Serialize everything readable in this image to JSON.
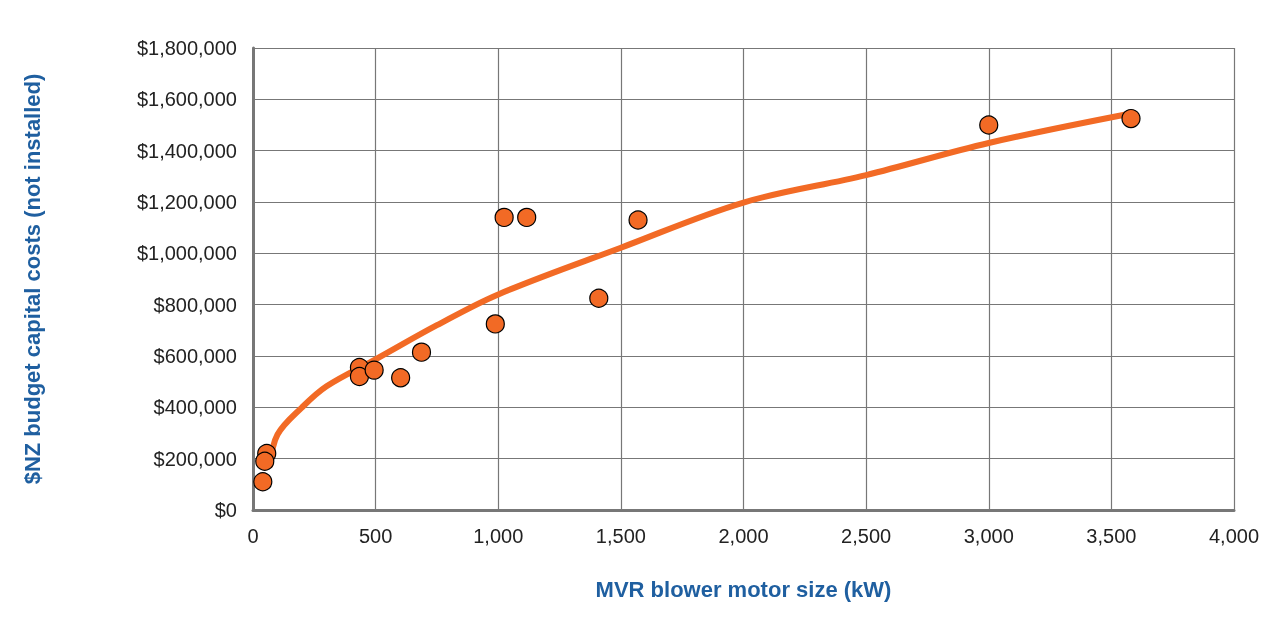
{
  "chart_data": {
    "type": "scatter",
    "xlabel": "MVR blower motor size (kW)",
    "ylabel": "$NZ budget capital costs (not installed)",
    "xlim": [
      0,
      4000
    ],
    "xticks": [
      0,
      500,
      {
        "value": 1000,
        "label": "1,000"
      },
      {
        "value": 1500,
        "label": "1,500"
      },
      {
        "value": 2000,
        "label": "2,000"
      },
      {
        "value": 2500,
        "label": "2,500"
      },
      {
        "value": 3000,
        "label": "3,000"
      },
      {
        "value": 3500,
        "label": "3,500"
      },
      {
        "value": 4000,
        "label": "4,000"
      }
    ],
    "ylim": [
      0,
      1800000
    ],
    "yticks": [
      {
        "value": 0,
        "label": "$0"
      },
      {
        "value": 200000,
        "label": "$200,000"
      },
      {
        "value": 400000,
        "label": "$400,000"
      },
      {
        "value": 600000,
        "label": "$600,000"
      },
      {
        "value": 800000,
        "label": "$800,000"
      },
      {
        "value": 1000000,
        "label": "$1,000,000"
      },
      {
        "value": 1200000,
        "label": "$1,200,000"
      },
      {
        "value": 1400000,
        "label": "$1,400,000"
      },
      {
        "value": 1600000,
        "label": "$1,600,000"
      },
      {
        "value": 1800000,
        "label": "$1,800,000"
      }
    ],
    "grid": true,
    "series": [
      {
        "type": "line",
        "marker": "none",
        "color": "#f26a25",
        "line_style": "solid",
        "x": [
          70,
          100,
          200,
          300,
          500,
          750,
          1000,
          1500,
          2000,
          2500,
          3000,
          3580
        ],
        "values": [
          175000,
          294000,
          400000,
          482000,
          587000,
          720000,
          840000,
          1022000,
          1198000,
          1305000,
          1430000,
          1545000
        ]
      },
      {
        "marker": "circle",
        "color": "#f26a25",
        "x": [
          40,
          56,
          48,
          434,
          434,
          494,
          602,
          687,
          988,
          1024,
          1116,
          1410,
          1570,
          3000,
          3580
        ],
        "values": [
          110000,
          220000,
          190000,
          555000,
          520000,
          545000,
          515000,
          615000,
          725000,
          1140000,
          1140000,
          825000,
          1130000,
          1500000,
          1525000
        ]
      }
    ]
  }
}
